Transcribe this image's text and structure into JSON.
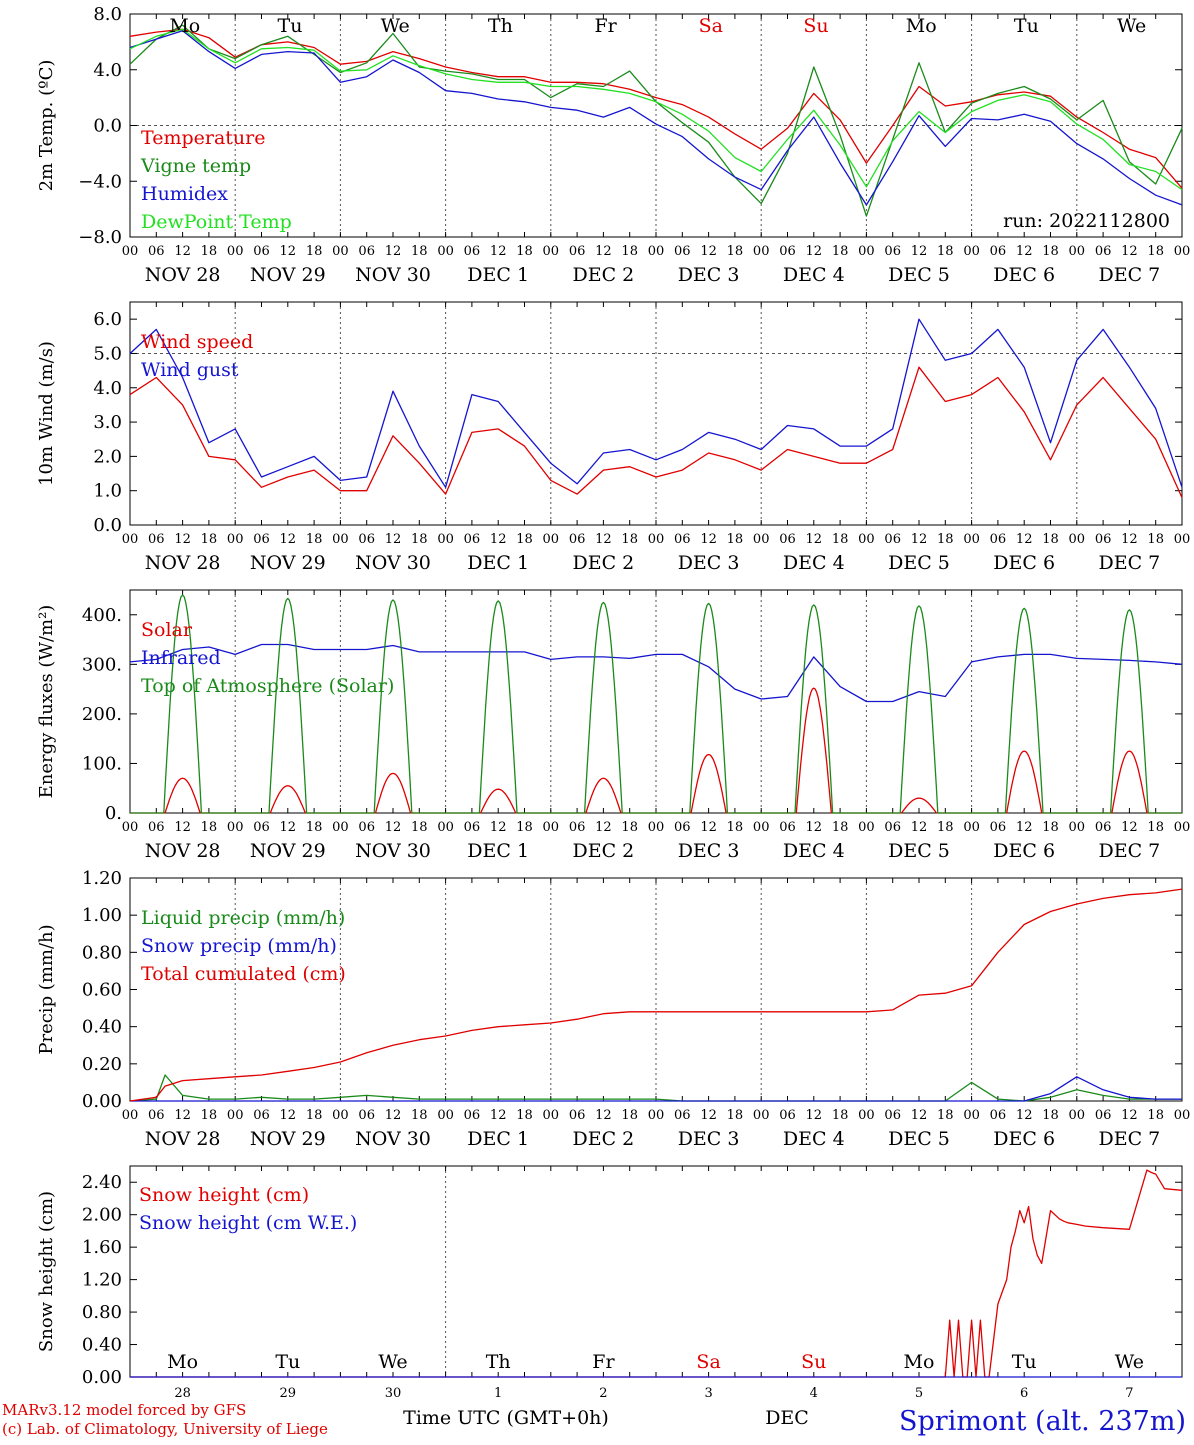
{
  "x_axis": {
    "hour_labels": [
      "00",
      "06",
      "12",
      "18"
    ],
    "final_hour_label": "00",
    "date_labels": [
      "NOV 28",
      "NOV 29",
      "NOV 30",
      "DEC  1",
      "DEC  2",
      "DEC  3",
      "DEC  4",
      "DEC  5",
      "DEC  6",
      "DEC  7"
    ],
    "day_labels": [
      "Mo",
      "Tu",
      "We",
      "Th",
      "Fr",
      "Sa",
      "Su",
      "Mo",
      "Tu",
      "We"
    ],
    "day_colors": [
      "#000000",
      "#000000",
      "#000000",
      "#000000",
      "#000000",
      "#e00000",
      "#e00000",
      "#000000",
      "#000000",
      "#000000"
    ],
    "day_numbers": [
      "28",
      "29",
      "30",
      "1",
      "2",
      "3",
      "4",
      "5",
      "6",
      "7"
    ],
    "bottom_month": "DEC",
    "title": "Time UTC (GMT+0h)"
  },
  "credits": {
    "line1": "MARv3.12 model forced by GFS",
    "line2": "(c) Lab. of Climatology, University of Liege",
    "location": "Sprimont (alt. 237m)"
  },
  "colors": {
    "red": "#e00000",
    "green": "#1a8a1a",
    "blue": "#1515d0",
    "lightgreen": "#22e022"
  },
  "chart_data": [
    {
      "type": "line",
      "ylabel": "2m Temp. (ºC)",
      "ylim": [
        -8,
        8
      ],
      "yticks": [
        "8.0",
        "4.0",
        "0.0",
        "−4.0",
        "−8.0"
      ],
      "ytick_values": [
        8,
        4,
        0,
        -4,
        -8
      ],
      "dashed_y": [
        0
      ],
      "annotation": "run: 2022112800",
      "x_hours": [
        0,
        6,
        12,
        18,
        24,
        30,
        36,
        42,
        48,
        54,
        60,
        66,
        72,
        78,
        84,
        90,
        96,
        102,
        108,
        114,
        120,
        126,
        132,
        138,
        144,
        150,
        156,
        162,
        168,
        174,
        180,
        186,
        192,
        198,
        204,
        210,
        216,
        222,
        228,
        234,
        240
      ],
      "series": [
        {
          "name": "Temperature",
          "color": "red",
          "values": [
            6.4,
            6.7,
            6.9,
            6.3,
            4.9,
            5.8,
            6.0,
            5.6,
            4.4,
            4.6,
            5.3,
            4.8,
            4.2,
            3.8,
            3.5,
            3.5,
            3.1,
            3.1,
            3.0,
            2.6,
            2.0,
            1.5,
            0.6,
            -0.6,
            -1.7,
            -0.2,
            2.3,
            0.4,
            -2.7,
            0.0,
            2.8,
            1.4,
            1.7,
            2.2,
            2.4,
            2.1,
            0.6,
            -0.5,
            -1.7,
            -2.3,
            -4.5
          ]
        },
        {
          "name": "Vigne temp",
          "color": "green",
          "values": [
            4.4,
            6.2,
            7.2,
            5.5,
            4.8,
            5.8,
            6.4,
            5.1,
            3.8,
            4.5,
            6.6,
            4.2,
            3.9,
            3.7,
            3.3,
            3.3,
            2.0,
            3.0,
            2.8,
            3.9,
            1.7,
            0.2,
            -1.2,
            -3.7,
            -5.6,
            -2.0,
            4.2,
            -0.7,
            -6.5,
            -1.0,
            4.5,
            -0.5,
            1.6,
            2.3,
            2.8,
            1.9,
            0.4,
            1.8,
            -2.6,
            -4.2,
            -0.2
          ]
        },
        {
          "name": "Humidex",
          "color": "blue",
          "values": [
            5.6,
            6.2,
            6.8,
            5.3,
            4.1,
            5.1,
            5.3,
            5.2,
            3.1,
            3.5,
            4.7,
            3.8,
            2.5,
            2.3,
            1.9,
            1.7,
            1.3,
            1.1,
            0.6,
            1.3,
            0.1,
            -0.8,
            -2.4,
            -3.7,
            -4.6,
            -1.8,
            0.6,
            -2.7,
            -5.7,
            -2.6,
            0.7,
            -1.5,
            0.5,
            0.4,
            0.8,
            0.3,
            -1.3,
            -2.4,
            -3.8,
            -5.0,
            -5.7
          ]
        },
        {
          "name": "DewPoint Temp",
          "color": "lightgreen",
          "values": [
            5.5,
            6.4,
            6.9,
            5.5,
            4.5,
            5.5,
            5.6,
            5.4,
            3.9,
            4.0,
            5.0,
            4.3,
            3.7,
            3.3,
            3.1,
            3.1,
            2.8,
            2.8,
            2.6,
            2.3,
            1.7,
            0.8,
            -0.4,
            -2.3,
            -3.3,
            -1.0,
            1.1,
            -1.4,
            -4.4,
            -1.1,
            1.0,
            -0.5,
            1.0,
            1.8,
            2.2,
            1.7,
            0.1,
            -1.0,
            -2.8,
            -3.3,
            -4.6
          ]
        }
      ]
    },
    {
      "type": "line",
      "ylabel": "10m Wind (m/s)",
      "ylim": [
        0,
        6.5
      ],
      "yticks": [
        "6.0",
        "5.0",
        "4.0",
        "3.0",
        "2.0",
        "1.0",
        "0.0"
      ],
      "ytick_values": [
        6,
        5,
        4,
        3,
        2,
        1,
        0
      ],
      "dashed_y": [
        5
      ],
      "x_hours": [
        0,
        6,
        12,
        18,
        24,
        30,
        36,
        42,
        48,
        54,
        60,
        66,
        72,
        78,
        84,
        90,
        96,
        102,
        108,
        114,
        120,
        126,
        132,
        138,
        144,
        150,
        156,
        162,
        168,
        174,
        180,
        186,
        192,
        198,
        204,
        210,
        216,
        222,
        228,
        234,
        240
      ],
      "series": [
        {
          "name": "Wind speed",
          "color": "red",
          "values": [
            3.8,
            4.3,
            3.5,
            2.0,
            1.9,
            1.1,
            1.4,
            1.6,
            1.0,
            1.0,
            2.6,
            1.8,
            0.9,
            2.7,
            2.8,
            2.3,
            1.3,
            0.9,
            1.6,
            1.7,
            1.4,
            1.6,
            2.1,
            1.9,
            1.6,
            2.2,
            2.0,
            1.8,
            1.8,
            2.2,
            4.6,
            3.6,
            3.8,
            4.3,
            3.3,
            1.9,
            3.5,
            4.3,
            3.4,
            2.5,
            0.8
          ]
        },
        {
          "name": "Wind gust",
          "color": "blue",
          "values": [
            5.0,
            5.7,
            4.3,
            2.4,
            2.8,
            1.4,
            1.7,
            2.0,
            1.3,
            1.4,
            3.9,
            2.3,
            1.1,
            3.8,
            3.6,
            2.7,
            1.8,
            1.2,
            2.1,
            2.2,
            1.9,
            2.2,
            2.7,
            2.5,
            2.2,
            2.9,
            2.8,
            2.3,
            2.3,
            2.8,
            6.0,
            4.8,
            5.0,
            5.7,
            4.6,
            2.4,
            4.8,
            5.7,
            4.6,
            3.4,
            1.1
          ]
        }
      ]
    },
    {
      "type": "line",
      "ylabel": "Energy fluxes (W/m²)",
      "ylim": [
        0,
        450
      ],
      "yticks": [
        "400.",
        "300.",
        "200.",
        "100.",
        "0."
      ],
      "ytick_values": [
        400,
        300,
        200,
        100,
        0
      ],
      "dashed_y": [],
      "series": [
        {
          "name": "Solar",
          "color": "red",
          "kind": "diurnal",
          "peak_hour": 12,
          "half_width_hours": 4,
          "peaks": [
            70,
            55,
            80,
            48,
            70,
            118,
            252,
            30,
            125,
            125
          ]
        },
        {
          "name": "Infrared",
          "color": "blue",
          "kind": "line",
          "x_hours": [
            0,
            6,
            12,
            18,
            24,
            30,
            36,
            42,
            48,
            54,
            60,
            66,
            72,
            78,
            84,
            90,
            96,
            102,
            108,
            114,
            120,
            126,
            132,
            138,
            144,
            150,
            156,
            162,
            168,
            174,
            180,
            186,
            192,
            198,
            204,
            210,
            216,
            222,
            228,
            234,
            240
          ],
          "values": [
            305,
            310,
            330,
            335,
            320,
            340,
            340,
            330,
            330,
            330,
            338,
            325,
            325,
            325,
            325,
            325,
            310,
            315,
            315,
            312,
            320,
            320,
            295,
            250,
            230,
            235,
            315,
            255,
            225,
            225,
            245,
            235,
            305,
            315,
            320,
            320,
            312,
            310,
            308,
            305,
            300
          ]
        },
        {
          "name": "Top of Atmosphere (Solar)",
          "color": "green",
          "kind": "diurnal",
          "peak_hour": 12,
          "half_width_hours": 4.3,
          "peaks": [
            440,
            433,
            430,
            428,
            425,
            423,
            420,
            418,
            413,
            410
          ]
        }
      ]
    },
    {
      "type": "line",
      "ylabel": "Precip (mm/h)",
      "ylim": [
        0,
        1.2
      ],
      "yticks": [
        "1.20",
        "1.00",
        "0.80",
        "0.60",
        "0.40",
        "0.20",
        "0.00"
      ],
      "ytick_values": [
        1.2,
        1.0,
        0.8,
        0.6,
        0.4,
        0.2,
        0.0
      ],
      "dashed_y": [],
      "x_hours": [
        0,
        6,
        8,
        12,
        18,
        24,
        30,
        36,
        42,
        48,
        54,
        60,
        66,
        72,
        78,
        84,
        90,
        96,
        102,
        108,
        114,
        120,
        126,
        132,
        138,
        144,
        150,
        156,
        162,
        168,
        174,
        180,
        186,
        192,
        198,
        204,
        210,
        216,
        222,
        228,
        234,
        240
      ],
      "series": [
        {
          "name": "Liquid precip (mm/h)",
          "color": "green",
          "values": [
            0,
            0.01,
            0.14,
            0.03,
            0.01,
            0.01,
            0.02,
            0.01,
            0.01,
            0.02,
            0.03,
            0.02,
            0.01,
            0.01,
            0.01,
            0.01,
            0.01,
            0.01,
            0.01,
            0.01,
            0.01,
            0.01,
            0.0,
            0.0,
            0.0,
            0.0,
            0.0,
            0.0,
            0.0,
            0.0,
            0.0,
            0.0,
            0.0,
            0.1,
            0.01,
            0.0,
            0.02,
            0.06,
            0.03,
            0.01,
            0.01,
            0.01
          ]
        },
        {
          "name": "Snow precip (mm/h)",
          "color": "blue",
          "values": [
            0,
            0,
            0,
            0,
            0,
            0,
            0,
            0,
            0,
            0,
            0,
            0,
            0,
            0,
            0,
            0,
            0,
            0,
            0,
            0,
            0,
            0,
            0,
            0,
            0,
            0,
            0,
            0,
            0,
            0,
            0,
            0,
            0,
            0,
            0,
            0,
            0.04,
            0.13,
            0.06,
            0.02,
            0.01,
            0.01
          ]
        },
        {
          "name": "Total cumulated (cm)",
          "color": "red",
          "values": [
            0,
            0.02,
            0.08,
            0.11,
            0.12,
            0.13,
            0.14,
            0.16,
            0.18,
            0.21,
            0.26,
            0.3,
            0.33,
            0.35,
            0.38,
            0.4,
            0.41,
            0.42,
            0.44,
            0.47,
            0.48,
            0.48,
            0.48,
            0.48,
            0.48,
            0.48,
            0.48,
            0.48,
            0.48,
            0.48,
            0.49,
            0.57,
            0.58,
            0.62,
            0.8,
            0.95,
            1.02,
            1.06,
            1.09,
            1.11,
            1.12,
            1.14
          ]
        }
      ]
    },
    {
      "type": "line",
      "ylabel": "Snow height (cm)",
      "ylim": [
        0,
        2.6
      ],
      "yticks": [
        "2.40",
        "2.00",
        "1.60",
        "1.20",
        "0.80",
        "0.40",
        "0.00"
      ],
      "ytick_values": [
        2.4,
        2.0,
        1.6,
        1.2,
        0.8,
        0.4,
        0.0
      ],
      "dashed_y": [],
      "x_hours": [
        0,
        180,
        186,
        187,
        188,
        189,
        190,
        191,
        192,
        193,
        194,
        195,
        196,
        198,
        200,
        201,
        202,
        203,
        204,
        205,
        206,
        207,
        208,
        210,
        212,
        213,
        214,
        216,
        218,
        222,
        228,
        232,
        233,
        234,
        236,
        240
      ],
      "series": [
        {
          "name": "Snow height (cm)",
          "color": "red",
          "values": [
            0,
            0,
            0,
            0.7,
            0,
            0.7,
            0,
            0,
            0.7,
            0,
            0.7,
            0,
            0,
            0.9,
            1.2,
            1.6,
            1.8,
            2.05,
            1.9,
            2.1,
            1.7,
            1.5,
            1.4,
            2.05,
            1.95,
            1.92,
            1.9,
            1.88,
            1.86,
            1.84,
            1.82,
            2.55,
            2.52,
            2.5,
            2.32,
            2.3
          ]
        },
        {
          "name": "Snow height (cm W.E.)",
          "color": "blue",
          "values": [
            0,
            0,
            0,
            0,
            0,
            0,
            0,
            0,
            0,
            0,
            0,
            0,
            0,
            0,
            0,
            0,
            0,
            0,
            0,
            0,
            0,
            0,
            0,
            0,
            0,
            0,
            0,
            0,
            0,
            0,
            0,
            0,
            0,
            0,
            0,
            0
          ]
        }
      ]
    }
  ]
}
